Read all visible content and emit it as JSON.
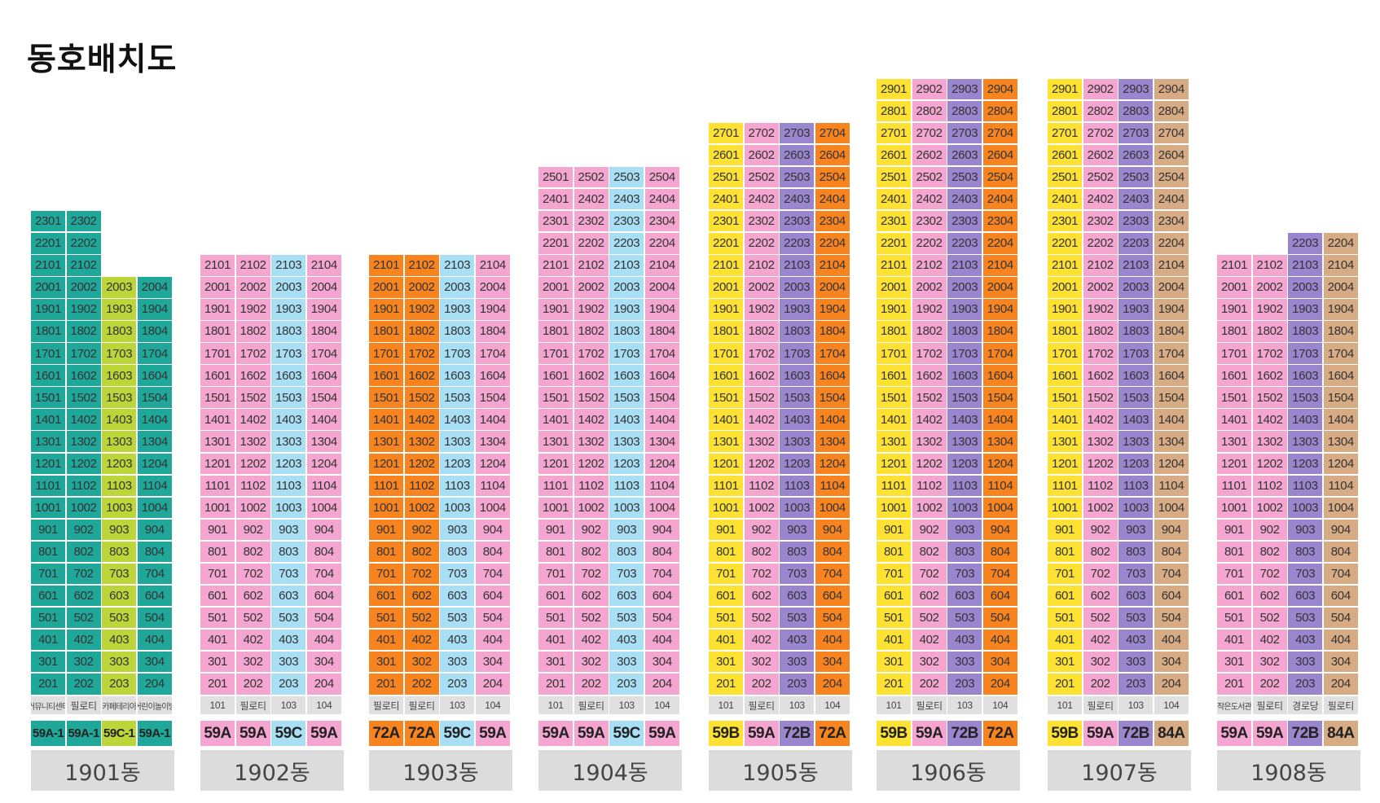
{
  "title": "동호배치도",
  "colors": {
    "59A": "#f4a6d0",
    "59A-1": "#1fa79a",
    "59B": "#fde233",
    "59C": "#a9dff5",
    "59C-1": "#bcd63a",
    "72A": "#f7841e",
    "72B": "#9a86cf",
    "84A": "#d7ab84",
    "ground": "#e0e0e0"
  },
  "buildings": [
    {
      "name": "1901동",
      "top_floors": [
        23,
        23,
        20,
        20
      ],
      "colors": [
        "59A-1",
        "59A-1",
        "59C-1",
        "59A-1"
      ],
      "ground": [
        "커뮤니티센터",
        "필로티",
        "카페테리아",
        "어린이놀이방"
      ],
      "types": [
        "59A-1",
        "59A-1",
        "59C-1",
        "59A-1"
      ]
    },
    {
      "name": "1902동",
      "top_floors": [
        21,
        21,
        21,
        21
      ],
      "colors": [
        "59A",
        "59A",
        "59C",
        "59A"
      ],
      "ground": [
        "101",
        "필로티",
        "103",
        "104"
      ],
      "types": [
        "59A",
        "59A",
        "59C",
        "59A"
      ]
    },
    {
      "name": "1903동",
      "top_floors": [
        21,
        21,
        21,
        21
      ],
      "colors": [
        "72A",
        "72A",
        "59C",
        "59A"
      ],
      "ground": [
        "필로티",
        "필로티",
        "103",
        "104"
      ],
      "types": [
        "72A",
        "72A",
        "59C",
        "59A"
      ]
    },
    {
      "name": "1904동",
      "top_floors": [
        25,
        25,
        25,
        25
      ],
      "colors": [
        "59A",
        "59A",
        "59C",
        "59A"
      ],
      "ground": [
        "101",
        "필로티",
        "103",
        "104"
      ],
      "types": [
        "59A",
        "59A",
        "59C",
        "59A"
      ]
    },
    {
      "name": "1905동",
      "top_floors": [
        27,
        27,
        27,
        27
      ],
      "colors": [
        "59B",
        "59A",
        "72B",
        "72A"
      ],
      "ground": [
        "101",
        "필로티",
        "103",
        "104"
      ],
      "types": [
        "59B",
        "59A",
        "72B",
        "72A"
      ]
    },
    {
      "name": "1906동",
      "top_floors": [
        29,
        29,
        29,
        29
      ],
      "colors": [
        "59B",
        "59A",
        "72B",
        "72A"
      ],
      "ground": [
        "101",
        "필로티",
        "103",
        "104"
      ],
      "types": [
        "59B",
        "59A",
        "72B",
        "72A"
      ]
    },
    {
      "name": "1907동",
      "top_floors": [
        29,
        29,
        29,
        29
      ],
      "colors": [
        "59B",
        "59A",
        "72B",
        "84A"
      ],
      "ground": [
        "101",
        "필로티",
        "103",
        "104"
      ],
      "types": [
        "59B",
        "59A",
        "72B",
        "84A"
      ]
    },
    {
      "name": "1908동",
      "top_floors": [
        21,
        21,
        22,
        22
      ],
      "colors": [
        "59A",
        "59A",
        "72B",
        "84A"
      ],
      "ground": [
        "작은도서관",
        "필로티",
        "경로당",
        "필로티"
      ],
      "types": [
        "59A",
        "59A",
        "72B",
        "84A"
      ]
    }
  ]
}
